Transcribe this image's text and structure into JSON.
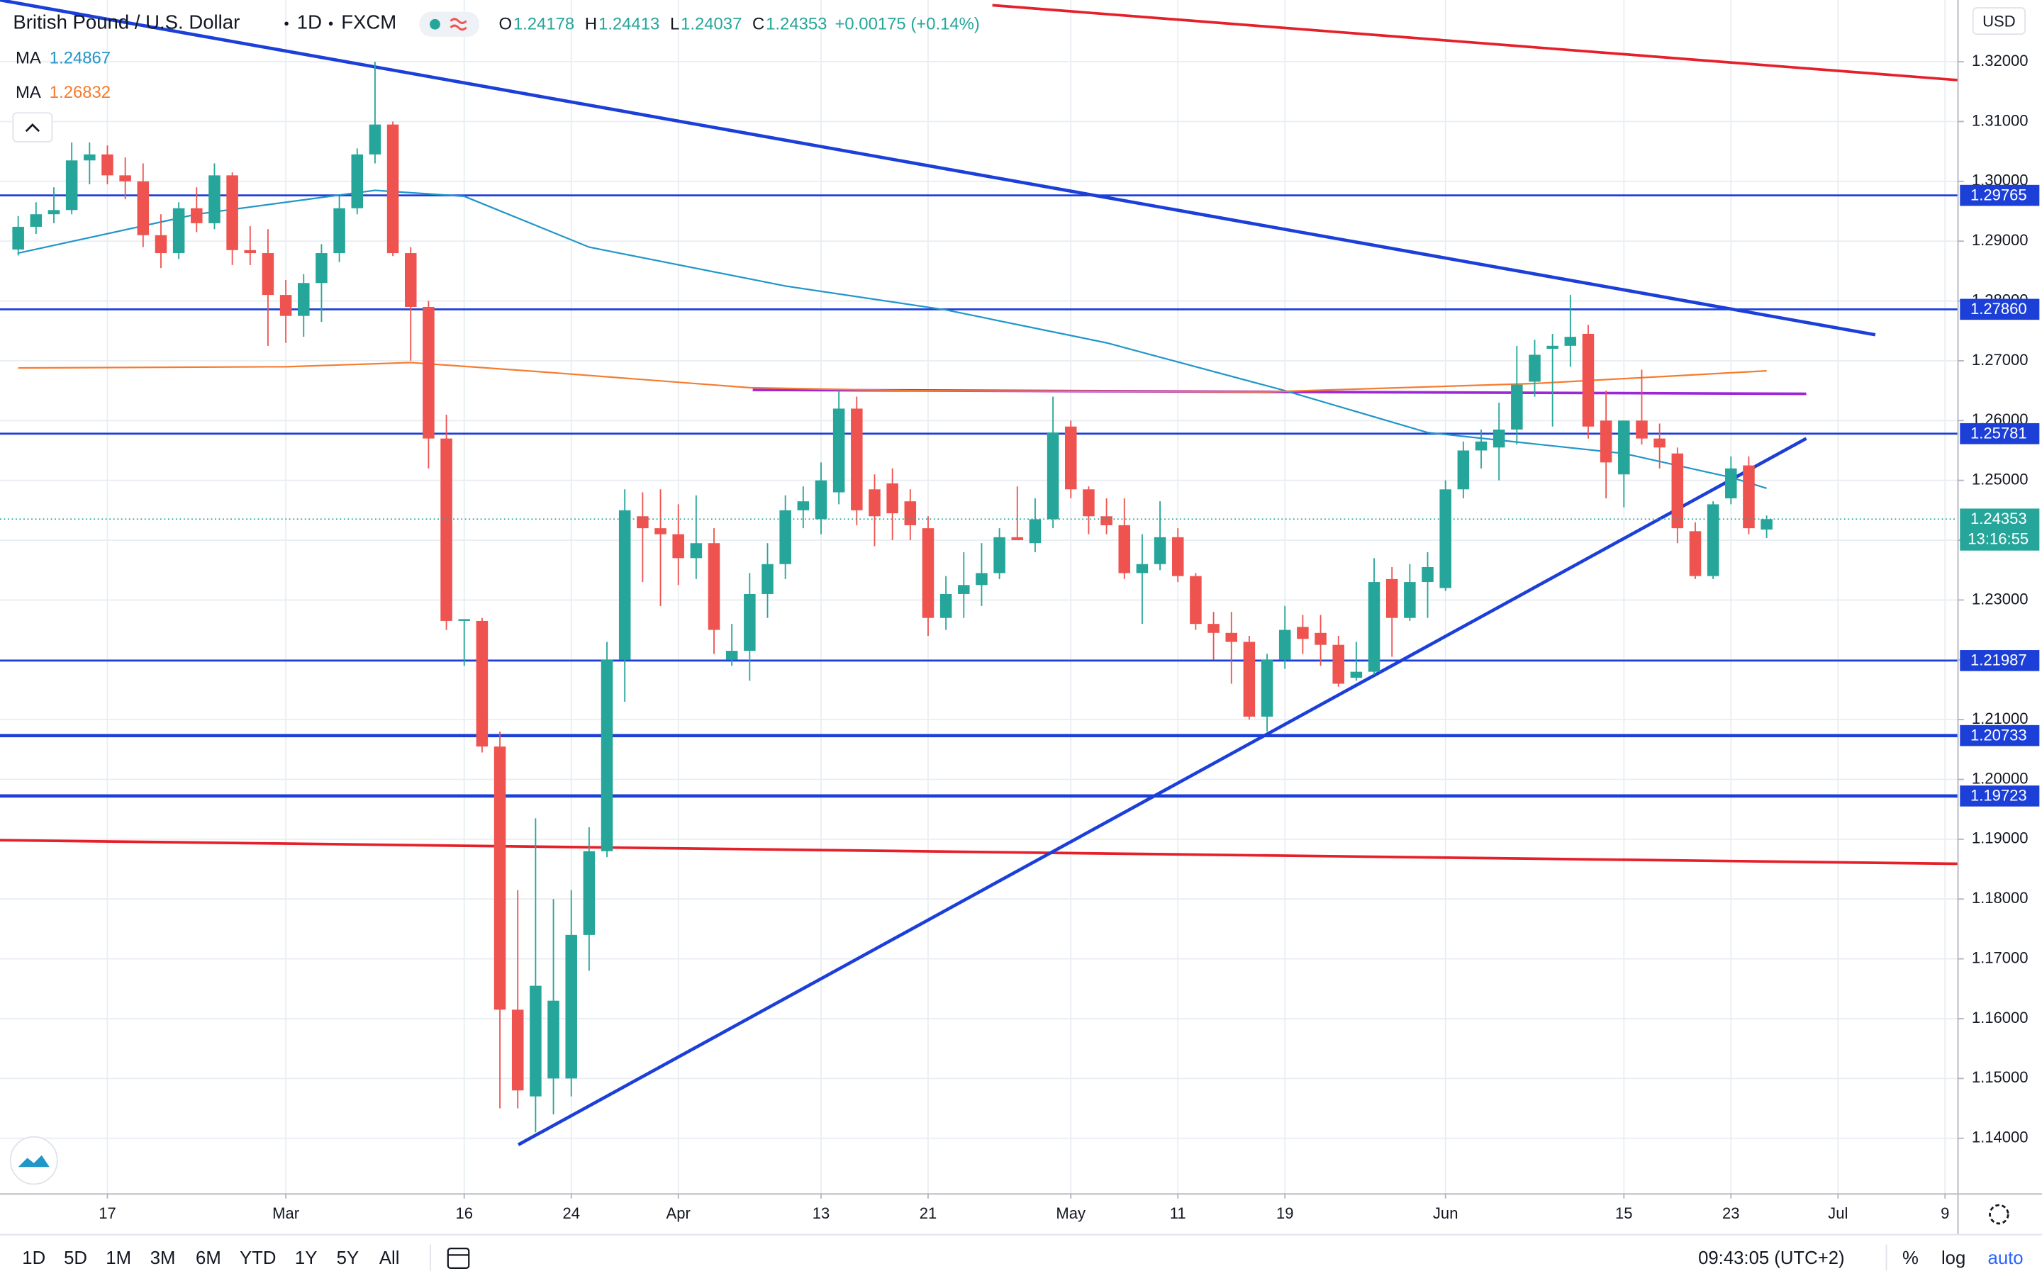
{
  "header": {
    "title": "British Pound / U.S. Dollar",
    "interval": "1D",
    "source": "FXCM",
    "ohlc": [
      {
        "label": "O",
        "value": 1.24178
      },
      {
        "label": "H",
        "value": 1.24413
      },
      {
        "label": "L",
        "value": 1.24037
      },
      {
        "label": "C",
        "value": 1.24353
      }
    ],
    "change": "+0.00175 (+0.14%)"
  },
  "chart_data": {
    "type": "candlestick",
    "currency": "USD",
    "up_color": "#26a69a",
    "down_color": "#ef5350",
    "xlim": [
      -1.02,
      108.69
    ],
    "ylim": [
      1.1308,
      1.33032
    ],
    "grid": true,
    "xticks": [
      {
        "value": 5,
        "label": "17"
      },
      {
        "value": 15,
        "label": "Mar"
      },
      {
        "value": 25,
        "label": "16"
      },
      {
        "value": 31,
        "label": "24"
      },
      {
        "value": 37,
        "label": "Apr"
      },
      {
        "value": 45,
        "label": "13"
      },
      {
        "value": 51,
        "label": "21"
      },
      {
        "value": 59,
        "label": "May"
      },
      {
        "value": 65,
        "label": "11"
      },
      {
        "value": 71,
        "label": "19"
      },
      {
        "value": 80,
        "label": "Jun"
      },
      {
        "value": 90,
        "label": "15"
      },
      {
        "value": 96,
        "label": "23"
      },
      {
        "value": 102,
        "label": "Jul"
      },
      {
        "value": 108,
        "label": "9"
      }
    ],
    "yticks": [
      {
        "value": 1.14,
        "label": "1.14000"
      },
      {
        "value": 1.15,
        "label": "1.15000"
      },
      {
        "value": 1.16,
        "label": "1.16000"
      },
      {
        "value": 1.17,
        "label": "1.17000"
      },
      {
        "value": 1.18,
        "label": "1.18000"
      },
      {
        "value": 1.19,
        "label": "1.19000"
      },
      {
        "value": 1.2,
        "label": "1.20000"
      },
      {
        "value": 1.21,
        "label": "1.21000"
      },
      {
        "value": 1.22,
        "label": "1.22000"
      },
      {
        "value": 1.23,
        "label": "1.23000"
      },
      {
        "value": 1.24,
        "label": "1.24000"
      },
      {
        "value": 1.25,
        "label": "1.25000"
      },
      {
        "value": 1.26,
        "label": "1.26000"
      },
      {
        "value": 1.27,
        "label": "1.27000"
      },
      {
        "value": 1.28,
        "label": "1.28000"
      },
      {
        "value": 1.29,
        "label": "1.29000"
      },
      {
        "value": 1.3,
        "label": "1.30000"
      },
      {
        "value": 1.31,
        "label": "1.31000"
      },
      {
        "value": 1.32,
        "label": "1.32000"
      }
    ],
    "open": [
      1.2886,
      1.2924,
      1.2945,
      1.2952,
      1.3035,
      1.3045,
      1.301,
      1.3,
      1.291,
      1.288,
      1.2955,
      1.293,
      1.301,
      1.2885,
      1.288,
      1.281,
      1.2775,
      1.283,
      1.288,
      1.2955,
      1.3045,
      1.3095,
      1.288,
      1.279,
      1.257,
      1.2265,
      1.2265,
      1.2055,
      1.1615,
      1.147,
      1.15,
      1.15,
      1.174,
      1.188,
      1.22,
      1.244,
      1.242,
      1.241,
      1.237,
      1.2395,
      1.22,
      1.2215,
      1.231,
      1.236,
      1.245,
      1.2435,
      1.248,
      1.262,
      1.2485,
      1.2495,
      1.2465,
      1.242,
      1.227,
      1.231,
      1.2325,
      1.2345,
      1.2405,
      1.2395,
      1.2435,
      1.259,
      1.2485,
      1.244,
      1.2425,
      1.2345,
      1.236,
      1.2405,
      1.234,
      1.226,
      1.2245,
      1.223,
      1.2105,
      1.22,
      1.2255,
      1.2245,
      1.2225,
      1.217,
      1.218,
      1.2335,
      1.227,
      1.233,
      1.232,
      1.2485,
      1.255,
      1.2555,
      1.2585,
      1.2665,
      1.272,
      1.2725,
      1.2745,
      1.26,
      1.251,
      1.26,
      1.257,
      1.2545,
      1.2415,
      1.234,
      1.247,
      1.2525,
      1.24178
    ],
    "high": [
      1.2942,
      1.2965,
      1.299,
      1.3065,
      1.3065,
      1.306,
      1.304,
      1.303,
      1.2945,
      1.2965,
      1.299,
      1.303,
      1.3015,
      1.2925,
      1.292,
      1.2835,
      1.2845,
      1.2895,
      1.2975,
      1.3055,
      1.32,
      1.31,
      1.289,
      1.28,
      1.261,
      1.2268,
      1.227,
      1.208,
      1.1815,
      1.1935,
      1.18,
      1.1815,
      1.192,
      1.223,
      1.2485,
      1.248,
      1.2485,
      1.246,
      1.2475,
      1.242,
      1.226,
      1.2345,
      1.2395,
      1.2475,
      1.249,
      1.253,
      1.265,
      1.264,
      1.251,
      1.252,
      1.2485,
      1.244,
      1.234,
      1.238,
      1.2395,
      1.242,
      1.249,
      1.247,
      1.264,
      1.26,
      1.249,
      1.247,
      1.247,
      1.241,
      1.2465,
      1.242,
      1.2345,
      1.228,
      1.228,
      1.224,
      1.221,
      1.229,
      1.2275,
      1.2275,
      1.224,
      1.223,
      1.237,
      1.2355,
      1.236,
      1.238,
      1.25,
      1.2565,
      1.2585,
      1.263,
      1.2725,
      1.2735,
      1.2745,
      1.281,
      1.276,
      1.265,
      1.26,
      1.2685,
      1.2595,
      1.2555,
      1.243,
      1.2465,
      1.254,
      1.254,
      1.24413
    ],
    "low": [
      1.2876,
      1.2912,
      1.293,
      1.2945,
      1.2995,
      1.2995,
      1.297,
      1.289,
      1.2855,
      1.287,
      1.2915,
      1.292,
      1.286,
      1.286,
      1.2725,
      1.273,
      1.274,
      1.2765,
      1.2865,
      1.2945,
      1.303,
      1.2875,
      1.27,
      1.252,
      1.225,
      1.219,
      1.2045,
      1.145,
      1.145,
      1.141,
      1.144,
      1.147,
      1.168,
      1.187,
      1.213,
      1.233,
      1.229,
      1.2325,
      1.2335,
      1.221,
      1.219,
      1.2165,
      1.227,
      1.2335,
      1.242,
      1.241,
      1.246,
      1.2425,
      1.239,
      1.24,
      1.24,
      1.224,
      1.225,
      1.227,
      1.229,
      1.2335,
      1.24,
      1.238,
      1.242,
      1.247,
      1.241,
      1.241,
      1.2335,
      1.226,
      1.235,
      1.233,
      1.225,
      1.22,
      1.216,
      1.21,
      1.208,
      1.2185,
      1.221,
      1.219,
      1.2155,
      1.2165,
      1.2175,
      1.2205,
      1.2265,
      1.227,
      1.2315,
      1.247,
      1.252,
      1.25,
      1.256,
      1.264,
      1.259,
      1.269,
      1.257,
      1.247,
      1.2455,
      1.256,
      1.252,
      1.2395,
      1.2335,
      1.2335,
      1.246,
      1.241,
      1.24037
    ],
    "close": [
      1.2924,
      1.2945,
      1.2952,
      1.3035,
      1.3045,
      1.301,
      1.3,
      1.291,
      1.288,
      1.2955,
      1.293,
      1.301,
      1.2885,
      1.288,
      1.281,
      1.2775,
      1.283,
      1.288,
      1.2955,
      1.3045,
      1.3095,
      1.288,
      1.279,
      1.257,
      1.2265,
      1.2268,
      1.2055,
      1.1615,
      1.148,
      1.1655,
      1.163,
      1.174,
      1.188,
      1.22,
      1.245,
      1.242,
      1.241,
      1.237,
      1.2395,
      1.225,
      1.2215,
      1.231,
      1.236,
      1.245,
      1.2465,
      1.25,
      1.262,
      1.245,
      1.244,
      1.2445,
      1.2425,
      1.227,
      1.231,
      1.2325,
      1.2345,
      1.2405,
      1.24,
      1.2435,
      1.258,
      1.2485,
      1.244,
      1.2425,
      1.2345,
      1.236,
      1.2405,
      1.234,
      1.226,
      1.2245,
      1.223,
      1.2105,
      1.22,
      1.225,
      1.2235,
      1.2225,
      1.216,
      1.218,
      1.233,
      1.227,
      1.233,
      1.2355,
      1.2485,
      1.255,
      1.2565,
      1.2585,
      1.266,
      1.271,
      1.2725,
      1.274,
      1.259,
      1.253,
      1.26,
      1.257,
      1.2555,
      1.242,
      1.234,
      1.246,
      1.252,
      1.242,
      1.24353
    ],
    "ma": [
      {
        "name": "MA",
        "color": "#2196c9",
        "last": 1.24867,
        "x": [
          0,
          10,
          20,
          25,
          32,
          43,
          52,
          61,
          71,
          79,
          90,
          96,
          98
        ],
        "values": [
          1.288,
          1.2945,
          1.2985,
          1.2975,
          1.289,
          1.2825,
          1.2785,
          1.273,
          1.265,
          1.258,
          1.2545,
          1.2505,
          1.24867
        ]
      },
      {
        "name": "MA",
        "color": "#f57c2f",
        "last": 1.26832,
        "x": [
          0,
          15,
          22,
          30,
          41,
          50,
          70,
          85,
          98
        ],
        "values": [
          1.2688,
          1.269,
          1.2697,
          1.268,
          1.2655,
          1.265,
          1.2648,
          1.2662,
          1.26832
        ]
      }
    ],
    "levels": [
      {
        "value": 1.29765,
        "label": "1.29765"
      },
      {
        "value": 1.2786,
        "label": "1.27860"
      },
      {
        "value": 1.25781,
        "label": "1.25781"
      },
      {
        "value": 1.21987,
        "label": "1.21987"
      },
      {
        "value": 1.20733,
        "label": "1.20733"
      },
      {
        "value": 1.19723,
        "label": "1.19723"
      }
    ],
    "last_price": {
      "value": 1.24353,
      "label": "1.24353"
    },
    "countdown": "13:16:55"
  },
  "toolbar": {
    "ranges": [
      "1D",
      "5D",
      "1M",
      "3M",
      "6M",
      "YTD",
      "1Y",
      "5Y",
      "All"
    ],
    "clock": "09:43:05 (UTC+2)",
    "percent": "%",
    "log": "log",
    "auto": "auto"
  }
}
